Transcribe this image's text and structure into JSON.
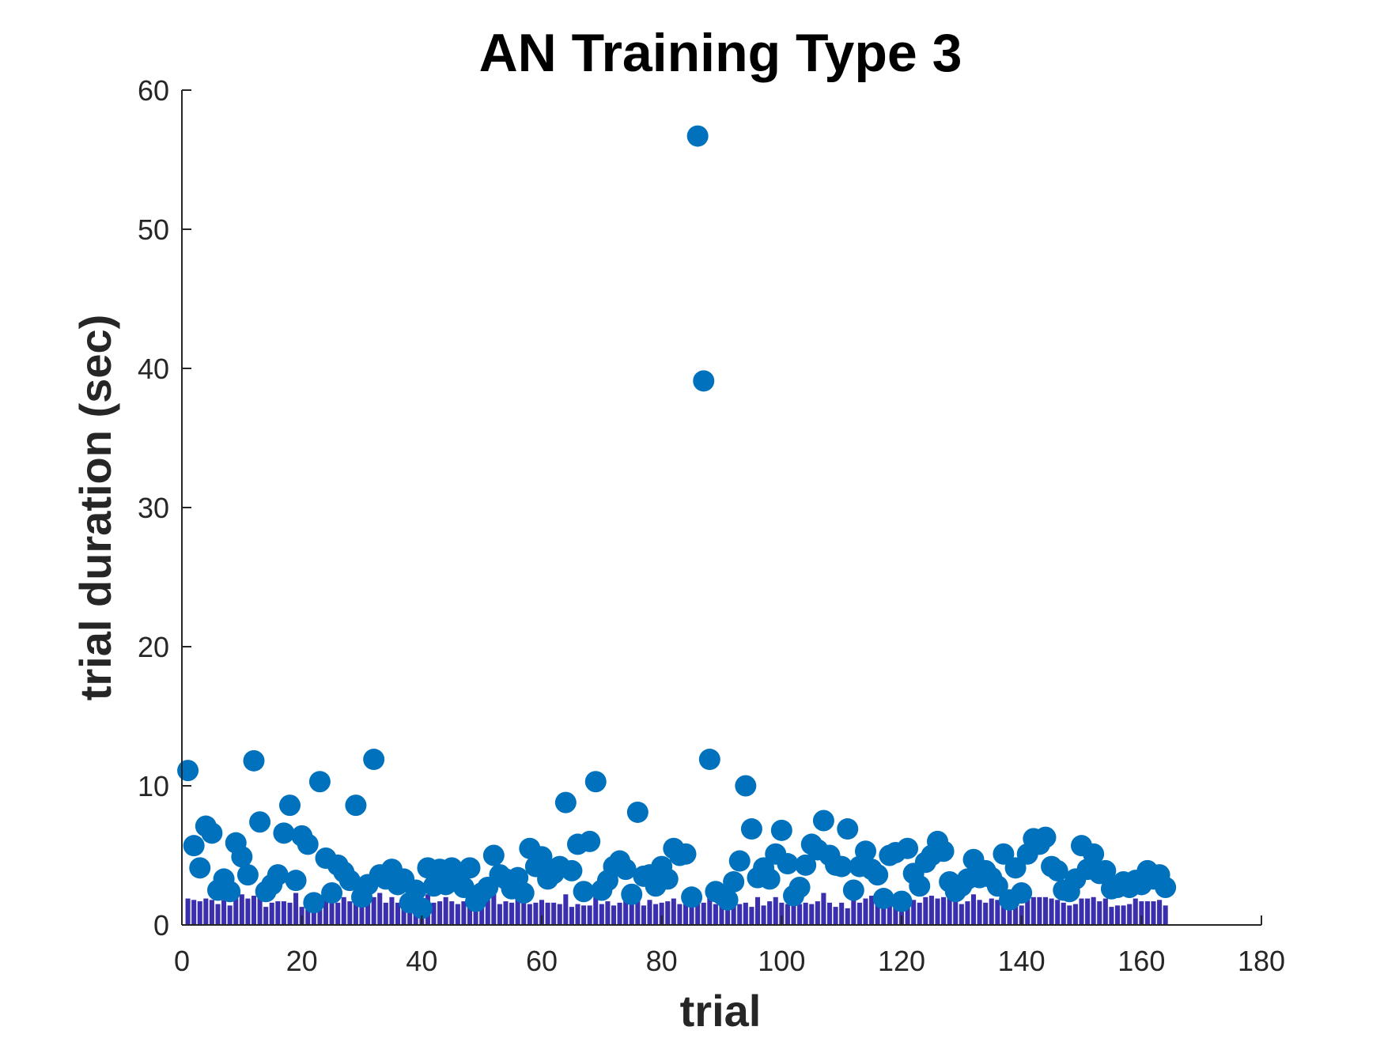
{
  "chart_data": {
    "type": "scatter",
    "title": "AN Training Type 3",
    "xlabel": "trial",
    "ylabel": "trial duration (sec)",
    "xlim": [
      0,
      180
    ],
    "ylim": [
      0,
      60
    ],
    "xticks": [
      0,
      20,
      40,
      60,
      80,
      100,
      120,
      140,
      160,
      180
    ],
    "yticks": [
      0,
      10,
      20,
      30,
      40,
      50,
      60
    ],
    "grid": false,
    "legend": "none",
    "colors": {
      "points": "#0072BD",
      "bars": "#3A2FAE",
      "axis": "#262626"
    },
    "series": [
      {
        "kind": "scatter",
        "x": [
          1,
          2,
          3,
          4,
          5,
          6,
          7,
          8,
          9,
          10,
          11,
          12,
          13,
          14,
          15,
          16,
          17,
          18,
          19,
          20,
          21,
          22,
          23,
          24,
          25,
          26,
          27,
          28,
          29,
          30,
          31,
          32,
          33,
          34,
          35,
          36,
          37,
          38,
          39,
          40,
          41,
          42,
          43,
          44,
          45,
          46,
          47,
          48,
          49,
          50,
          51,
          52,
          53,
          54,
          55,
          56,
          57,
          58,
          59,
          60,
          61,
          62,
          63,
          64,
          65,
          66,
          67,
          68,
          69,
          70,
          71,
          72,
          73,
          74,
          75,
          76,
          77,
          78,
          79,
          80,
          81,
          82,
          83,
          84,
          85,
          86,
          87,
          88,
          89,
          90,
          91,
          92,
          93,
          94,
          95,
          96,
          97,
          98,
          99,
          100,
          101,
          102,
          103,
          104,
          105,
          106,
          107,
          108,
          109,
          110,
          111,
          112,
          113,
          114,
          115,
          116,
          117,
          118,
          119,
          120,
          121,
          122,
          123,
          124,
          125,
          126,
          127,
          128,
          129,
          130,
          131,
          132,
          133,
          134,
          135,
          136,
          137,
          138,
          139,
          140,
          141,
          142,
          143,
          144,
          145,
          146,
          147,
          148,
          149,
          150,
          151,
          152,
          153,
          154,
          155,
          156,
          157,
          158,
          159,
          160,
          161,
          162,
          163,
          164
        ],
        "y": [
          11.1,
          5.7,
          4.1,
          7.1,
          6.6,
          2.5,
          3.3,
          2.4,
          5.9,
          4.9,
          3.6,
          11.8,
          7.4,
          2.4,
          2.9,
          3.6,
          6.6,
          8.6,
          3.2,
          6.4,
          5.8,
          1.6,
          10.3,
          4.8,
          2.3,
          4.3,
          3.8,
          3.2,
          8.6,
          2.0,
          2.9,
          11.9,
          3.6,
          3.3,
          4.0,
          2.9,
          3.3,
          1.6,
          2.5,
          1.2,
          4.1,
          2.8,
          4.0,
          2.9,
          4.1,
          3.3,
          2.7,
          4.1,
          1.7,
          2.3,
          2.7,
          5.0,
          3.6,
          3.3,
          2.6,
          3.4,
          2.3,
          5.5,
          4.2,
          4.9,
          3.3,
          3.7,
          4.2,
          8.8,
          3.9,
          5.8,
          2.4,
          6.0,
          10.3,
          2.5,
          3.2,
          4.2,
          4.6,
          4.0,
          2.2,
          8.1,
          3.5,
          3.6,
          2.8,
          4.2,
          3.3,
          5.5,
          5.0,
          5.1,
          2.0,
          56.7,
          39.1,
          11.9,
          2.4,
          2.2,
          1.8,
          3.1,
          4.6,
          10.0,
          6.9,
          3.4,
          4.1,
          3.3,
          5.1,
          6.8,
          4.4,
          2.1,
          2.7,
          4.3,
          5.8,
          5.4,
          7.5,
          5.0,
          4.3,
          4.2,
          6.9,
          2.5,
          4.2,
          5.3,
          4.0,
          3.6,
          1.9,
          5.0,
          5.2,
          1.7,
          5.5,
          3.7,
          2.8,
          4.5,
          5.0,
          6.0,
          5.3,
          3.1,
          2.4,
          2.8,
          3.3,
          4.7,
          3.4,
          3.9,
          3.4,
          2.8,
          5.1,
          1.8,
          4.1,
          2.3,
          5.1,
          6.2,
          5.8,
          6.3,
          4.2,
          3.9,
          2.5,
          2.4,
          3.3,
          5.7,
          4.0,
          5.1,
          3.7,
          3.9,
          2.6,
          2.7,
          3.1,
          2.7,
          3.2,
          2.9,
          3.9,
          3.3,
          3.6,
          2.7
        ]
      },
      {
        "kind": "bar",
        "x": [
          1,
          2,
          3,
          4,
          5,
          6,
          7,
          8,
          9,
          10,
          11,
          12,
          13,
          14,
          15,
          16,
          17,
          18,
          19,
          20,
          21,
          22,
          23,
          24,
          25,
          26,
          27,
          28,
          29,
          30,
          31,
          32,
          33,
          34,
          35,
          36,
          37,
          38,
          39,
          40,
          41,
          42,
          43,
          44,
          45,
          46,
          47,
          48,
          49,
          50,
          51,
          52,
          53,
          54,
          55,
          56,
          57,
          58,
          59,
          60,
          61,
          62,
          63,
          64,
          65,
          66,
          67,
          68,
          69,
          70,
          71,
          72,
          73,
          74,
          75,
          76,
          77,
          78,
          79,
          80,
          81,
          82,
          83,
          84,
          85,
          86,
          87,
          88,
          89,
          90,
          91,
          92,
          93,
          94,
          95,
          96,
          97,
          98,
          99,
          100,
          101,
          102,
          103,
          104,
          105,
          106,
          107,
          108,
          109,
          110,
          111,
          112,
          113,
          114,
          115,
          116,
          117,
          118,
          119,
          120,
          121,
          122,
          123,
          124,
          125,
          126,
          127,
          128,
          129,
          130,
          131,
          132,
          133,
          134,
          135,
          136,
          137,
          138,
          139,
          140,
          141,
          142,
          143,
          144,
          145,
          146,
          147,
          148,
          149,
          150,
          151,
          152,
          153,
          154,
          155,
          156,
          157,
          158,
          159,
          160,
          161,
          162,
          163,
          164
        ],
        "y": [
          1.9,
          1.8,
          1.7,
          1.9,
          1.8,
          1.5,
          1.8,
          1.4,
          1.9,
          2.2,
          1.9,
          2.1,
          2.2,
          1.3,
          1.6,
          1.7,
          1.7,
          1.6,
          2.3,
          1.3,
          2.0,
          2.1,
          1.5,
          1.9,
          2.0,
          1.6,
          2.0,
          1.7,
          2.2,
          1.8,
          1.9,
          2.0,
          2.3,
          1.6,
          2.0,
          1.6,
          1.8,
          1.5,
          2.0,
          1.6,
          2.2,
          1.6,
          1.7,
          2.0,
          1.7,
          1.5,
          1.7,
          1.5,
          1.3,
          1.6,
          1.8,
          2.3,
          1.5,
          1.7,
          1.6,
          1.9,
          1.6,
          1.5,
          1.6,
          1.8,
          1.6,
          1.6,
          1.5,
          2.2,
          1.3,
          1.5,
          1.4,
          1.4,
          2.2,
          1.5,
          1.7,
          1.4,
          1.6,
          2.2,
          1.5,
          1.9,
          1.4,
          1.8,
          1.5,
          1.6,
          1.7,
          1.9,
          1.5,
          2.2,
          1.6,
          1.7,
          1.6,
          2.1,
          1.5,
          1.6,
          1.6,
          1.8,
          1.5,
          1.6,
          1.3,
          2.0,
          1.4,
          1.7,
          2.0,
          1.6,
          1.5,
          1.6,
          1.5,
          1.6,
          1.5,
          1.7,
          2.3,
          1.6,
          1.3,
          1.6,
          1.2,
          2.0,
          1.6,
          1.9,
          2.1,
          1.7,
          1.3,
          1.8,
          1.4,
          1.7,
          2.0,
          1.8,
          1.6,
          2.0,
          2.1,
          1.9,
          2.0,
          2.2,
          1.8,
          1.5,
          1.7,
          2.2,
          1.8,
          1.6,
          1.9,
          1.8,
          1.7,
          1.4,
          1.8,
          1.4,
          1.9,
          2.0,
          2.0,
          2.0,
          1.9,
          1.8,
          1.6,
          1.4,
          1.5,
          1.9,
          1.9,
          2.0,
          1.7,
          1.9,
          1.3,
          1.4,
          1.4,
          1.5,
          1.9,
          1.7,
          1.7,
          1.7,
          1.8,
          1.4
        ]
      }
    ]
  }
}
